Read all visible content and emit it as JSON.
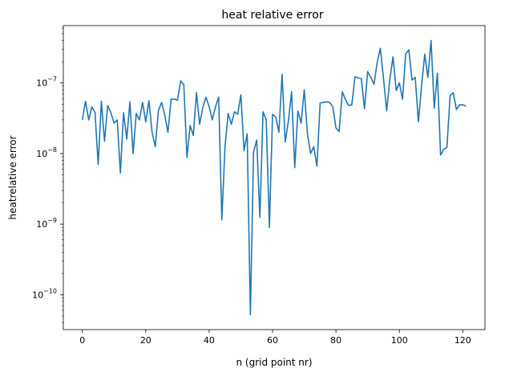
{
  "chart_data": {
    "type": "line",
    "title": "heat relative error",
    "xlabel": "n (grid point nr)",
    "ylabel": "heatrelative error",
    "yscale": "log",
    "xlim": [
      -6,
      127
    ],
    "ylim": [
      3.2e-11,
      6.5e-07
    ],
    "x_ticks": [
      0,
      20,
      40,
      60,
      80,
      100,
      120
    ],
    "y_ticks": [
      {
        "value": 1e-10,
        "base": "10",
        "exp": "−10"
      },
      {
        "value": 1e-09,
        "base": "10",
        "exp": "−9"
      },
      {
        "value": 1e-08,
        "base": "10",
        "exp": "−8"
      },
      {
        "value": 1e-07,
        "base": "10",
        "exp": "−7"
      }
    ],
    "grid": false,
    "line_color": "#1f77b4",
    "series": [
      {
        "x": [
          0,
          1,
          2,
          3,
          4,
          5,
          6,
          7,
          8,
          9,
          10,
          11,
          12,
          13,
          14,
          15,
          16,
          17,
          18,
          19,
          20,
          21,
          22,
          23,
          24,
          25,
          26,
          27,
          28,
          29,
          30,
          31,
          32,
          33,
          34,
          35,
          36,
          37,
          38,
          39,
          40,
          41,
          42,
          43,
          44,
          45,
          46,
          47,
          48,
          49,
          50,
          51,
          52,
          53,
          54,
          55,
          56,
          57,
          58,
          59,
          60,
          61,
          62,
          63,
          64,
          65,
          66,
          67,
          68,
          69,
          70,
          71,
          72,
          73,
          74,
          75,
          76,
          77,
          78,
          79,
          80,
          81,
          82,
          83,
          84,
          85,
          86,
          87,
          88,
          89,
          90,
          91,
          92,
          93,
          94,
          95,
          96,
          97,
          98,
          99,
          100,
          101,
          102,
          103,
          104,
          105,
          106,
          107,
          108,
          109,
          110,
          111,
          112,
          113,
          114,
          115,
          116,
          117,
          118,
          119,
          120,
          121
        ],
        "values": [
          3e-08,
          5.5e-08,
          3e-08,
          4.6e-08,
          3.8e-08,
          7e-09,
          5.5e-08,
          1.5e-08,
          4.8e-08,
          3.8e-08,
          2.7e-08,
          3e-08,
          5.3e-09,
          3.8e-08,
          1.6e-08,
          5.4e-08,
          1e-08,
          3.7e-08,
          3e-08,
          5.3e-08,
          2.8e-08,
          5.6e-08,
          2e-08,
          1.25e-08,
          4.1e-08,
          5.3e-08,
          3.5e-08,
          2e-08,
          5.9e-08,
          5.9e-08,
          5.7e-08,
          1.07e-07,
          9.5e-08,
          8.8e-09,
          2.5e-08,
          1.8e-08,
          7.3e-08,
          2.6e-08,
          4.5e-08,
          6.3e-08,
          4.6e-08,
          3e-08,
          4.6e-08,
          6.3e-08,
          1.15e-09,
          1.25e-08,
          3.7e-08,
          2.6e-08,
          3.9e-08,
          3.6e-08,
          6.8e-08,
          1.1e-08,
          1.9e-08,
          5.2e-11,
          1.05e-08,
          1.55e-08,
          1.25e-09,
          3.9e-08,
          3e-08,
          9e-10,
          3.6e-08,
          3.3e-08,
          2e-08,
          1.33e-07,
          1.45e-08,
          2.9e-08,
          7.5e-08,
          6.3e-09,
          4e-08,
          2.7e-08,
          8e-08,
          1.9e-08,
          1e-08,
          1.25e-08,
          6.6e-09,
          5.2e-08,
          5.3e-08,
          5.4e-08,
          5.3e-08,
          4.6e-08,
          2.3e-08,
          2.05e-08,
          7.5e-08,
          5.8e-08,
          4.8e-08,
          4.9e-08,
          1.23e-07,
          1.18e-07,
          1.15e-07,
          4.3e-08,
          1.45e-07,
          1.2e-07,
          9.6e-08,
          1.95e-07,
          3.1e-07,
          1.16e-07,
          4e-08,
          1.14e-07,
          2.35e-07,
          7.8e-08,
          1e-07,
          5.9e-08,
          2.6e-07,
          2.95e-07,
          1.1e-07,
          1.2e-07,
          2.8e-08,
          9e-08,
          2.55e-07,
          1.2e-07,
          4e-07,
          4.4e-08,
          1.38e-07,
          9.5e-09,
          1.15e-08,
          1.22e-08,
          6.6e-08,
          7.3e-08,
          4.2e-08,
          4.9e-08,
          4.9e-08,
          4.7e-08
        ]
      }
    ]
  }
}
